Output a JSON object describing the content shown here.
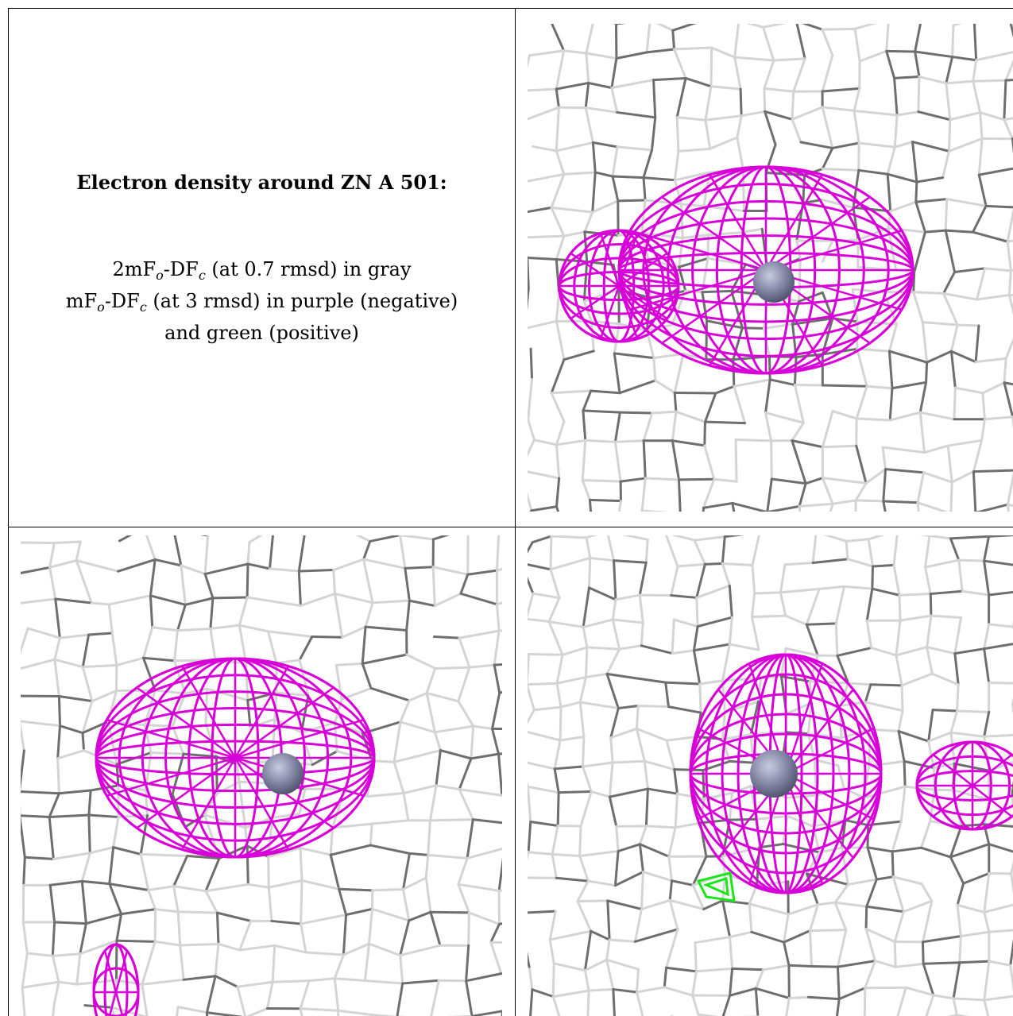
{
  "title": "Electron density around ZN A 501:",
  "legend": {
    "line1_a": "2mF",
    "line1_sub1": "o",
    "line1_b": "-DF",
    "line1_sub2": "c",
    "line1_c": " (at 0.7 rmsd) in gray",
    "line2_a": "mF",
    "line2_sub1": "o",
    "line2_b": "-DF",
    "line2_sub2": "c",
    "line2_c": " (at 3 rmsd) in purple (negative)",
    "line3": "and green (positive)"
  },
  "colors": {
    "mesh_gray_light": "#d4d4d4",
    "mesh_gray_dark": "#6e6e6e",
    "negative_purple": "#d800d8",
    "positive_green": "#19e619",
    "zinc_atom": "#7b7f9e"
  },
  "panels": [
    {
      "name": "density-view-1"
    },
    {
      "name": "density-view-2"
    },
    {
      "name": "density-view-3"
    }
  ]
}
